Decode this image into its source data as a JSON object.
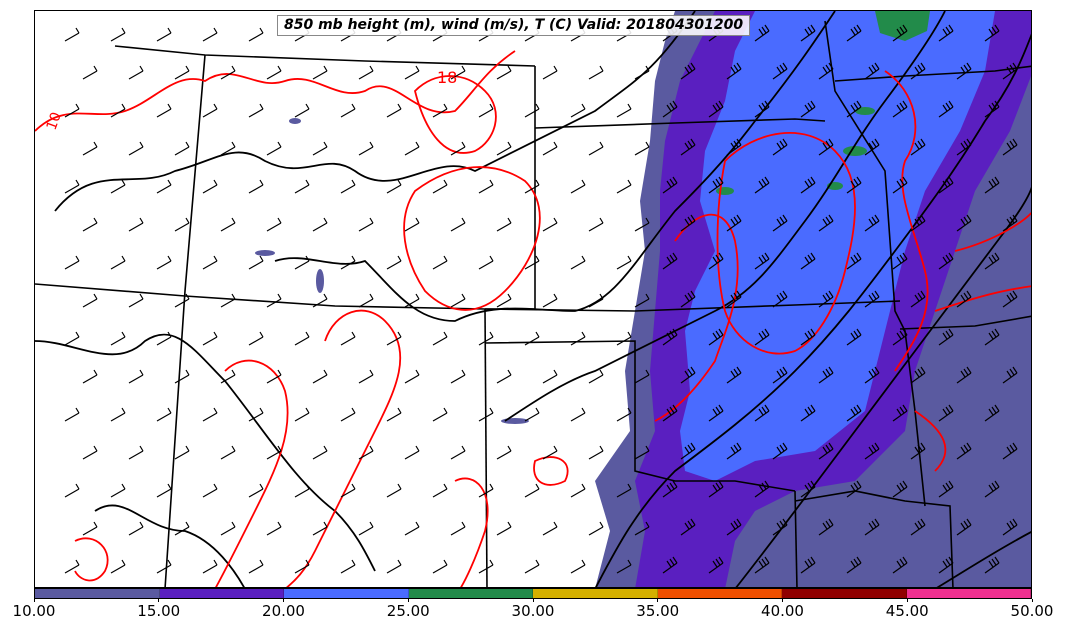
{
  "title": "850 mb height (m), wind (m/s), T (C) Valid: 201804301200",
  "contour_labels": {
    "label_a": "18",
    "label_b": "10"
  },
  "colorbar": {
    "ticks": [
      "10.00",
      "15.00",
      "20.00",
      "25.00",
      "30.00",
      "35.00",
      "40.00",
      "45.00",
      "50.00"
    ],
    "colors": [
      "#5a5aa0",
      "#5a1fc0",
      "#4a6bff",
      "#228b4a",
      "#d4b000",
      "#f05000",
      "#900000",
      "#f03090"
    ]
  },
  "colors": {
    "height_contour": "#000000",
    "temperature_contour": "#ff0000",
    "state_border": "#000000"
  }
}
